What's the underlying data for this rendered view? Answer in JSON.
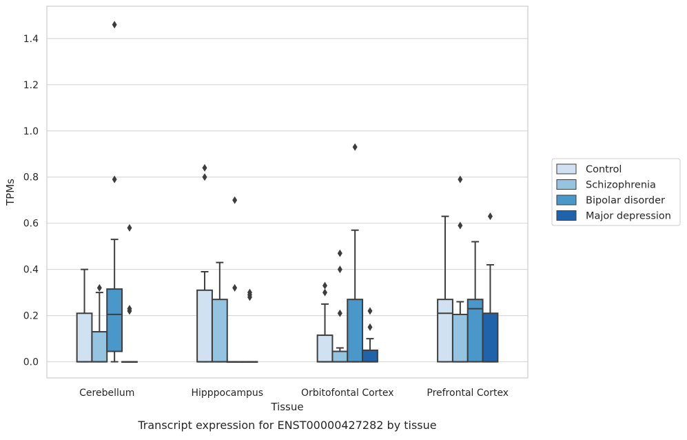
{
  "chart_data": {
    "type": "box",
    "caption": "Transcript expression for ENST00000427282 by tissue",
    "xlabel": "Tissue",
    "ylabel": "TPMs",
    "ylim": [
      -0.07,
      1.54
    ],
    "yticks": [
      0.0,
      0.2,
      0.4,
      0.6,
      0.8,
      1.0,
      1.2,
      1.4
    ],
    "ytick_labels": [
      "0.0",
      "0.2",
      "0.4",
      "0.6",
      "0.8",
      "1.0",
      "1.2",
      "1.4"
    ],
    "grid": "horizontal",
    "legend_position": "right",
    "categories": [
      "Cerebellum",
      "Hipppocampus",
      "Orbitofontal Cortex",
      "Prefrontal Cortex"
    ],
    "series": [
      {
        "name": "Control",
        "color": "#d0e1f2",
        "boxes": [
          {
            "q1": 0.0,
            "median": 0.0,
            "q3": 0.21,
            "whisker_low": 0.0,
            "whisker_high": 0.4,
            "outliers": []
          },
          {
            "q1": 0.0,
            "median": 0.0,
            "q3": 0.31,
            "whisker_low": 0.0,
            "whisker_high": 0.39,
            "outliers": [
              0.8,
              0.84
            ]
          },
          {
            "q1": 0.0,
            "median": 0.0,
            "q3": 0.115,
            "whisker_low": 0.0,
            "whisker_high": 0.25,
            "outliers": [
              0.3,
              0.33
            ]
          },
          {
            "q1": 0.0,
            "median": 0.21,
            "q3": 0.27,
            "whisker_low": 0.0,
            "whisker_high": 0.63,
            "outliers": []
          }
        ]
      },
      {
        "name": "Schizophrenia",
        "color": "#94c4df",
        "boxes": [
          {
            "q1": 0.0,
            "median": 0.0,
            "q3": 0.13,
            "whisker_low": 0.0,
            "whisker_high": 0.3,
            "outliers": [
              0.32
            ]
          },
          {
            "q1": 0.0,
            "median": 0.0,
            "q3": 0.27,
            "whisker_low": 0.0,
            "whisker_high": 0.43,
            "outliers": []
          },
          {
            "q1": 0.0,
            "median": 0.0,
            "q3": 0.045,
            "whisker_low": 0.0,
            "whisker_high": 0.06,
            "outliers": [
              0.21,
              0.4,
              0.47
            ]
          },
          {
            "q1": 0.0,
            "median": 0.0,
            "q3": 0.205,
            "whisker_low": 0.0,
            "whisker_high": 0.26,
            "outliers": [
              0.59,
              0.79
            ]
          }
        ]
      },
      {
        "name": "Bipolar disorder",
        "color": "#4a98c9",
        "boxes": [
          {
            "q1": 0.045,
            "median": 0.205,
            "q3": 0.315,
            "whisker_low": 0.0,
            "whisker_high": 0.53,
            "outliers": [
              0.79,
              1.46
            ]
          },
          {
            "q1": 0.0,
            "median": 0.0,
            "q3": 0.0,
            "whisker_low": 0.0,
            "whisker_high": 0.0,
            "outliers": [
              0.32,
              0.7
            ]
          },
          {
            "q1": 0.0,
            "median": 0.0,
            "q3": 0.27,
            "whisker_low": 0.0,
            "whisker_high": 0.57,
            "outliers": [
              0.93
            ]
          },
          {
            "q1": 0.0,
            "median": 0.23,
            "q3": 0.27,
            "whisker_low": 0.0,
            "whisker_high": 0.52,
            "outliers": []
          }
        ]
      },
      {
        "name": "Major depression",
        "color": "#2163aa",
        "boxes": [
          {
            "q1": 0.0,
            "median": 0.0,
            "q3": 0.0,
            "whisker_low": 0.0,
            "whisker_high": 0.0,
            "outliers": [
              0.22,
              0.23,
              0.58
            ]
          },
          {
            "q1": 0.0,
            "median": 0.0,
            "q3": 0.0,
            "whisker_low": 0.0,
            "whisker_high": 0.0,
            "outliers": [
              0.28,
              0.29,
              0.3
            ]
          },
          {
            "q1": 0.0,
            "median": 0.0,
            "q3": 0.05,
            "whisker_low": 0.0,
            "whisker_high": 0.1,
            "outliers": [
              0.15,
              0.22
            ]
          },
          {
            "q1": 0.0,
            "median": 0.0,
            "q3": 0.21,
            "whisker_low": 0.0,
            "whisker_high": 0.42,
            "outliers": [
              0.63
            ]
          }
        ]
      }
    ]
  }
}
